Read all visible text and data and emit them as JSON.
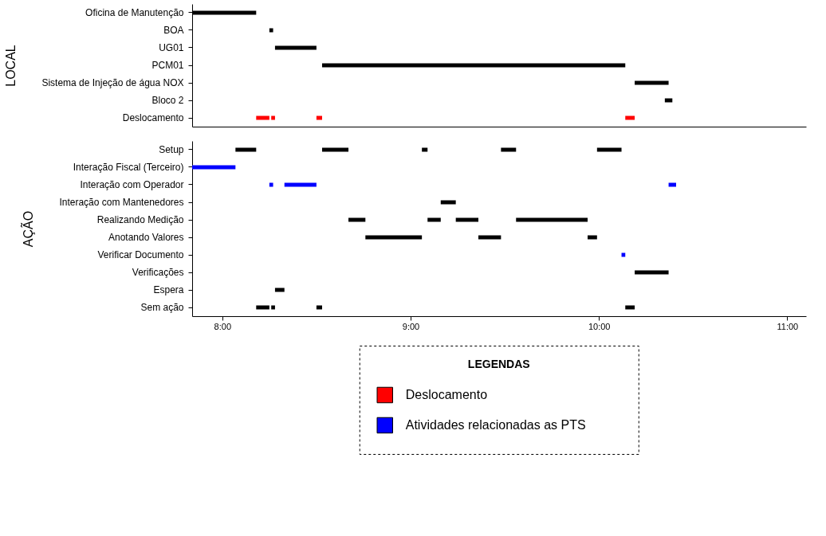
{
  "chart_data": [
    {
      "type": "bar",
      "orientation": "horizontal",
      "ylabel": "LOCAL",
      "tick_labels": "y",
      "grid": false,
      "legend": "bottom",
      "categories": [
        "Oficina de Manutenção",
        "BOA",
        "UG01",
        "PCM01",
        "Sistema de Injeção de água NOX",
        "Bloco 2",
        "Deslocamento"
      ],
      "xlim": [
        7.84,
        11.1
      ],
      "series": [
        {
          "color": "#000000",
          "base": [
            7.84,
            8.25,
            8.28,
            8.53,
            10.19,
            10.35,
            null
          ],
          "values": [
            0.34,
            0.02,
            0.22,
            1.61,
            0.18,
            0.04,
            null
          ]
        },
        {
          "name": "Deslocamento",
          "color": "#ff0000",
          "base": [
            null,
            null,
            null,
            null,
            null,
            null,
            8.18
          ],
          "values": [
            null,
            null,
            null,
            null,
            null,
            null,
            0.07
          ]
        },
        {
          "color": "#ff0000",
          "base": [
            null,
            null,
            null,
            null,
            null,
            null,
            8.26
          ],
          "values": [
            null,
            null,
            null,
            null,
            null,
            null,
            0.02
          ]
        },
        {
          "color": "#ff0000",
          "base": [
            null,
            null,
            null,
            null,
            null,
            null,
            8.5
          ],
          "values": [
            null,
            null,
            null,
            null,
            null,
            null,
            0.03
          ]
        },
        {
          "color": "#ff0000",
          "base": [
            null,
            null,
            null,
            null,
            null,
            null,
            10.14
          ],
          "values": [
            null,
            null,
            null,
            null,
            null,
            null,
            0.05
          ]
        }
      ]
    },
    {
      "type": "bar",
      "orientation": "horizontal",
      "ylabel": "AÇÃO",
      "grid": false,
      "legend": "bottom",
      "legend_title": "LEGENDAS",
      "categories": [
        "Setup",
        "Interação Fiscal (Terceiro)",
        "Interação com Operador",
        "Interação com Mantenedores",
        "Realizando Medição",
        "Anotando Valores",
        "Verificar Documento",
        "Verificações",
        "Espera",
        "Sem ação"
      ],
      "xlim": [
        7.84,
        11.1
      ],
      "xticks": [
        {
          "value": 8,
          "label": "8:00"
        },
        {
          "value": 9,
          "label": "9:00"
        },
        {
          "value": 10,
          "label": "10:00"
        },
        {
          "value": 11,
          "label": "11:00"
        }
      ],
      "series": [
        {
          "color": "#000000",
          "base": [
            8.07,
            null,
            null,
            9.16,
            8.67,
            8.76,
            null,
            10.19,
            8.28,
            8.18
          ],
          "values": [
            0.11,
            null,
            null,
            0.08,
            0.09,
            0.3,
            null,
            0.18,
            0.05,
            0.07
          ]
        },
        {
          "color": "#000000",
          "base": [
            8.53,
            null,
            null,
            null,
            9.09,
            9.36,
            null,
            null,
            null,
            8.26
          ],
          "values": [
            0.14,
            null,
            null,
            null,
            0.07,
            0.12,
            null,
            null,
            null,
            0.02
          ]
        },
        {
          "color": "#000000",
          "base": [
            9.06,
            null,
            null,
            null,
            9.24,
            9.94,
            null,
            null,
            null,
            8.5
          ],
          "values": [
            0.03,
            null,
            null,
            null,
            0.12,
            0.05,
            null,
            null,
            null,
            0.03
          ]
        },
        {
          "color": "#000000",
          "base": [
            9.48,
            null,
            null,
            null,
            9.56,
            null,
            null,
            null,
            null,
            10.14
          ],
          "values": [
            0.08,
            null,
            null,
            null,
            0.38,
            null,
            null,
            null,
            null,
            0.05
          ]
        },
        {
          "color": "#000000",
          "base": [
            9.99,
            null,
            null,
            null,
            null,
            null,
            null,
            null,
            null,
            null
          ],
          "values": [
            0.13,
            null,
            null,
            null,
            null,
            null,
            null,
            null,
            null,
            null
          ]
        },
        {
          "name": "Atividades relacionadas as PTS",
          "color": "#0000ff",
          "base": [
            null,
            7.84,
            8.25,
            null,
            null,
            null,
            10.12,
            null,
            null,
            null
          ],
          "values": [
            null,
            0.23,
            0.02,
            null,
            null,
            null,
            0.02,
            null,
            null,
            null
          ]
        },
        {
          "color": "#0000ff",
          "base": [
            null,
            null,
            8.33,
            null,
            null,
            null,
            null,
            null,
            null,
            null
          ],
          "values": [
            null,
            null,
            0.17,
            null,
            null,
            null,
            null,
            null,
            null,
            null
          ]
        },
        {
          "color": "#0000ff",
          "base": [
            null,
            null,
            10.37,
            null,
            null,
            null,
            null,
            null,
            null,
            null
          ],
          "values": [
            null,
            null,
            0.04,
            null,
            null,
            null,
            null,
            null,
            null,
            null
          ]
        }
      ]
    }
  ]
}
